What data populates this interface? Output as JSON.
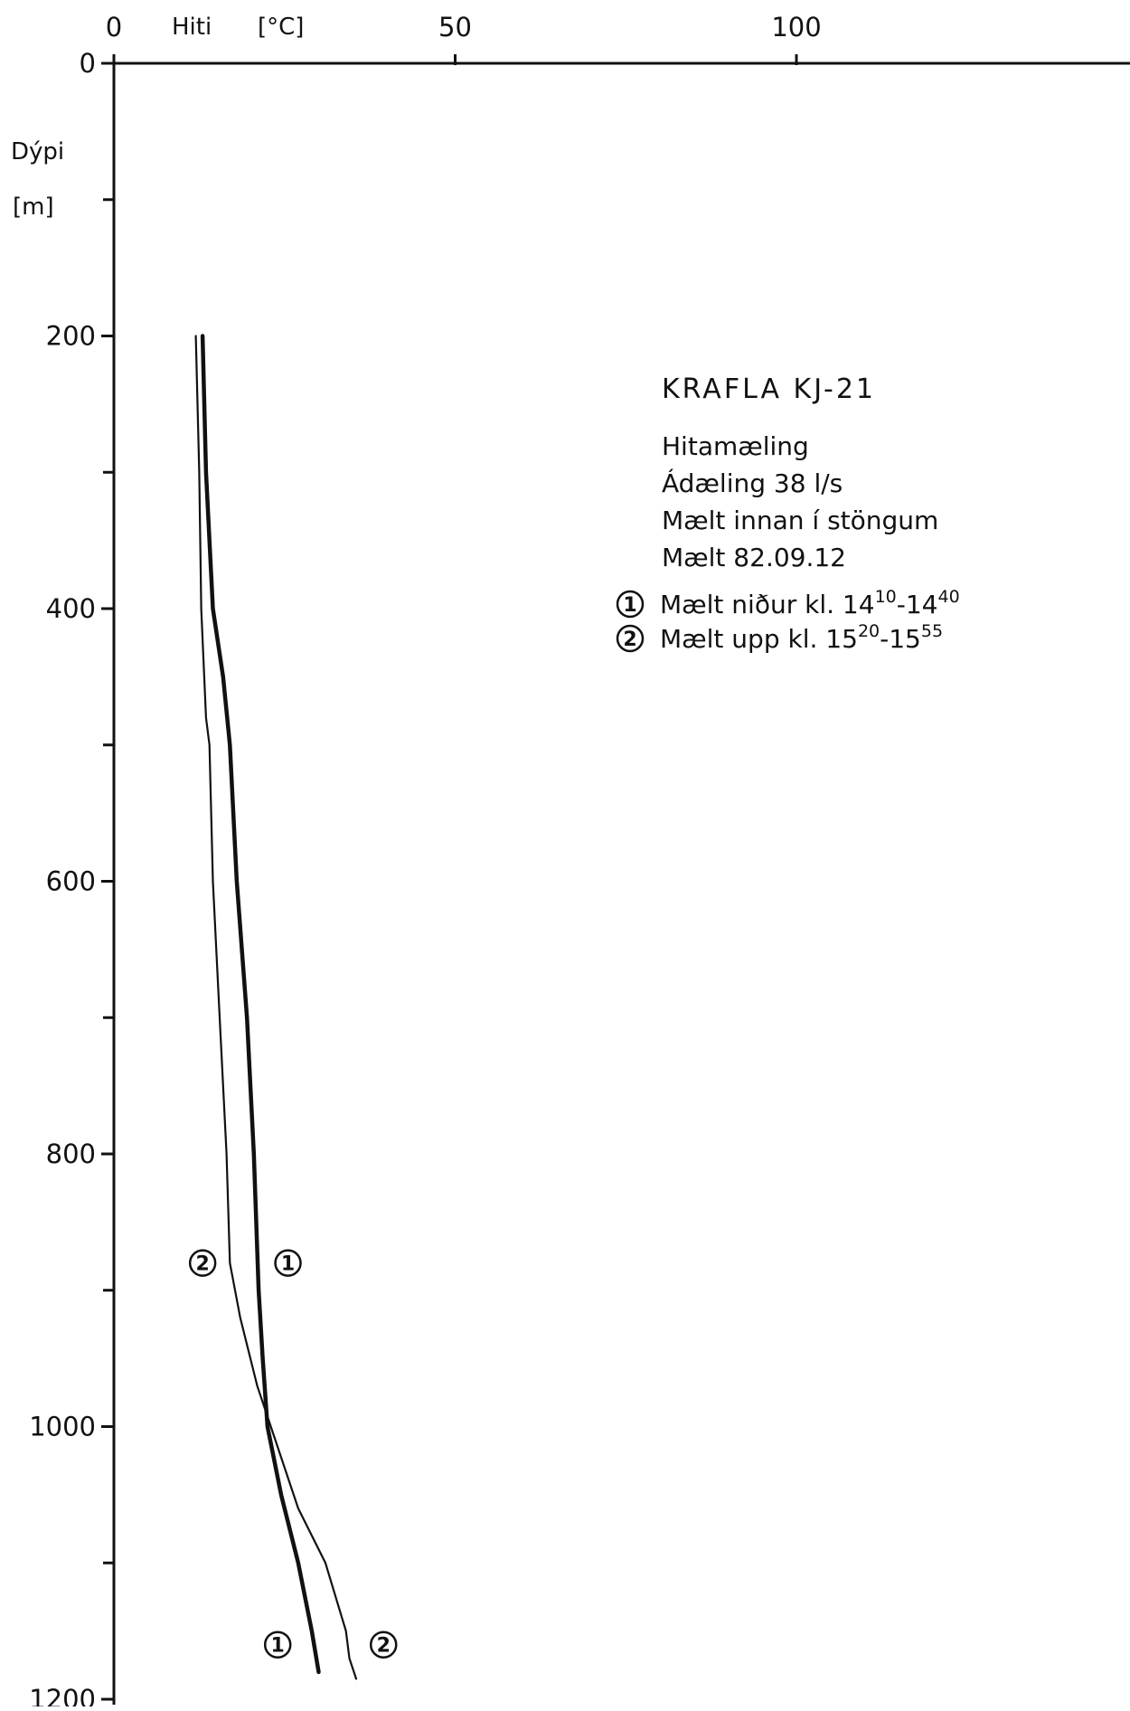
{
  "chart_data": {
    "type": "line",
    "title": "KRAFLA KJ-21",
    "subtitle_lines": [
      "Hitamæling",
      "Ádæling 38 l/s",
      "Mælt innan í stöngum",
      "Mælt 82.09.12"
    ],
    "xlabel": "Hiti",
    "xunit": "[°C]",
    "ylabel": "Dýpi",
    "yunit": "[m]",
    "xlim": [
      0,
      150
    ],
    "ylim": [
      0,
      1200
    ],
    "x_axis_position": "top",
    "y_inverted": true,
    "grid": false,
    "x_ticks": [
      0,
      50,
      100
    ],
    "x_tick_labels": [
      "0",
      "50",
      "100"
    ],
    "y_ticks": [
      0,
      200,
      400,
      600,
      800,
      1000,
      1200
    ],
    "y_tick_labels": [
      "0",
      "200",
      "400",
      "600",
      "800",
      "1000",
      "1200"
    ],
    "y_minor_ticks": [
      100,
      300,
      500,
      700,
      900,
      1100
    ],
    "legend": [
      {
        "marker": "1",
        "text": "Mælt niður kl. 14",
        "sup1": "10",
        "dash": "-14",
        "sup2": "40"
      },
      {
        "marker": "2",
        "text": "Mælt upp kl. 15",
        "sup1": "20",
        "dash": "-15",
        "sup2": "55"
      }
    ],
    "legend_placement": "top-right",
    "series": [
      {
        "marker": "1",
        "line_weight": "thick",
        "points": [
          [
            13.0,
            200
          ],
          [
            13.5,
            300
          ],
          [
            14.5,
            400
          ],
          [
            16.0,
            450
          ],
          [
            17.0,
            500
          ],
          [
            18.0,
            600
          ],
          [
            19.5,
            700
          ],
          [
            20.5,
            800
          ],
          [
            21.2,
            900
          ],
          [
            21.8,
            950
          ],
          [
            22.5,
            1000
          ],
          [
            24.5,
            1050
          ],
          [
            27.0,
            1100
          ],
          [
            29.0,
            1150
          ],
          [
            30.0,
            1180
          ]
        ]
      },
      {
        "marker": "2",
        "line_weight": "thin",
        "points": [
          [
            12.0,
            200
          ],
          [
            12.5,
            300
          ],
          [
            12.8,
            400
          ],
          [
            13.5,
            480
          ],
          [
            14.0,
            500
          ],
          [
            14.5,
            600
          ],
          [
            15.5,
            700
          ],
          [
            16.5,
            800
          ],
          [
            17.0,
            880
          ],
          [
            18.5,
            920
          ],
          [
            21.0,
            970
          ],
          [
            23.0,
            1000
          ],
          [
            27.0,
            1060
          ],
          [
            31.0,
            1100
          ],
          [
            34.0,
            1150
          ],
          [
            34.5,
            1170
          ],
          [
            35.5,
            1185
          ]
        ]
      }
    ],
    "curve_markers": [
      {
        "label": "1",
        "x": 25.5,
        "y": 880
      },
      {
        "label": "2",
        "x": 13.0,
        "y": 880
      },
      {
        "label": "1",
        "x": 24.0,
        "y": 1160
      },
      {
        "label": "2",
        "x": 39.5,
        "y": 1160
      }
    ]
  }
}
